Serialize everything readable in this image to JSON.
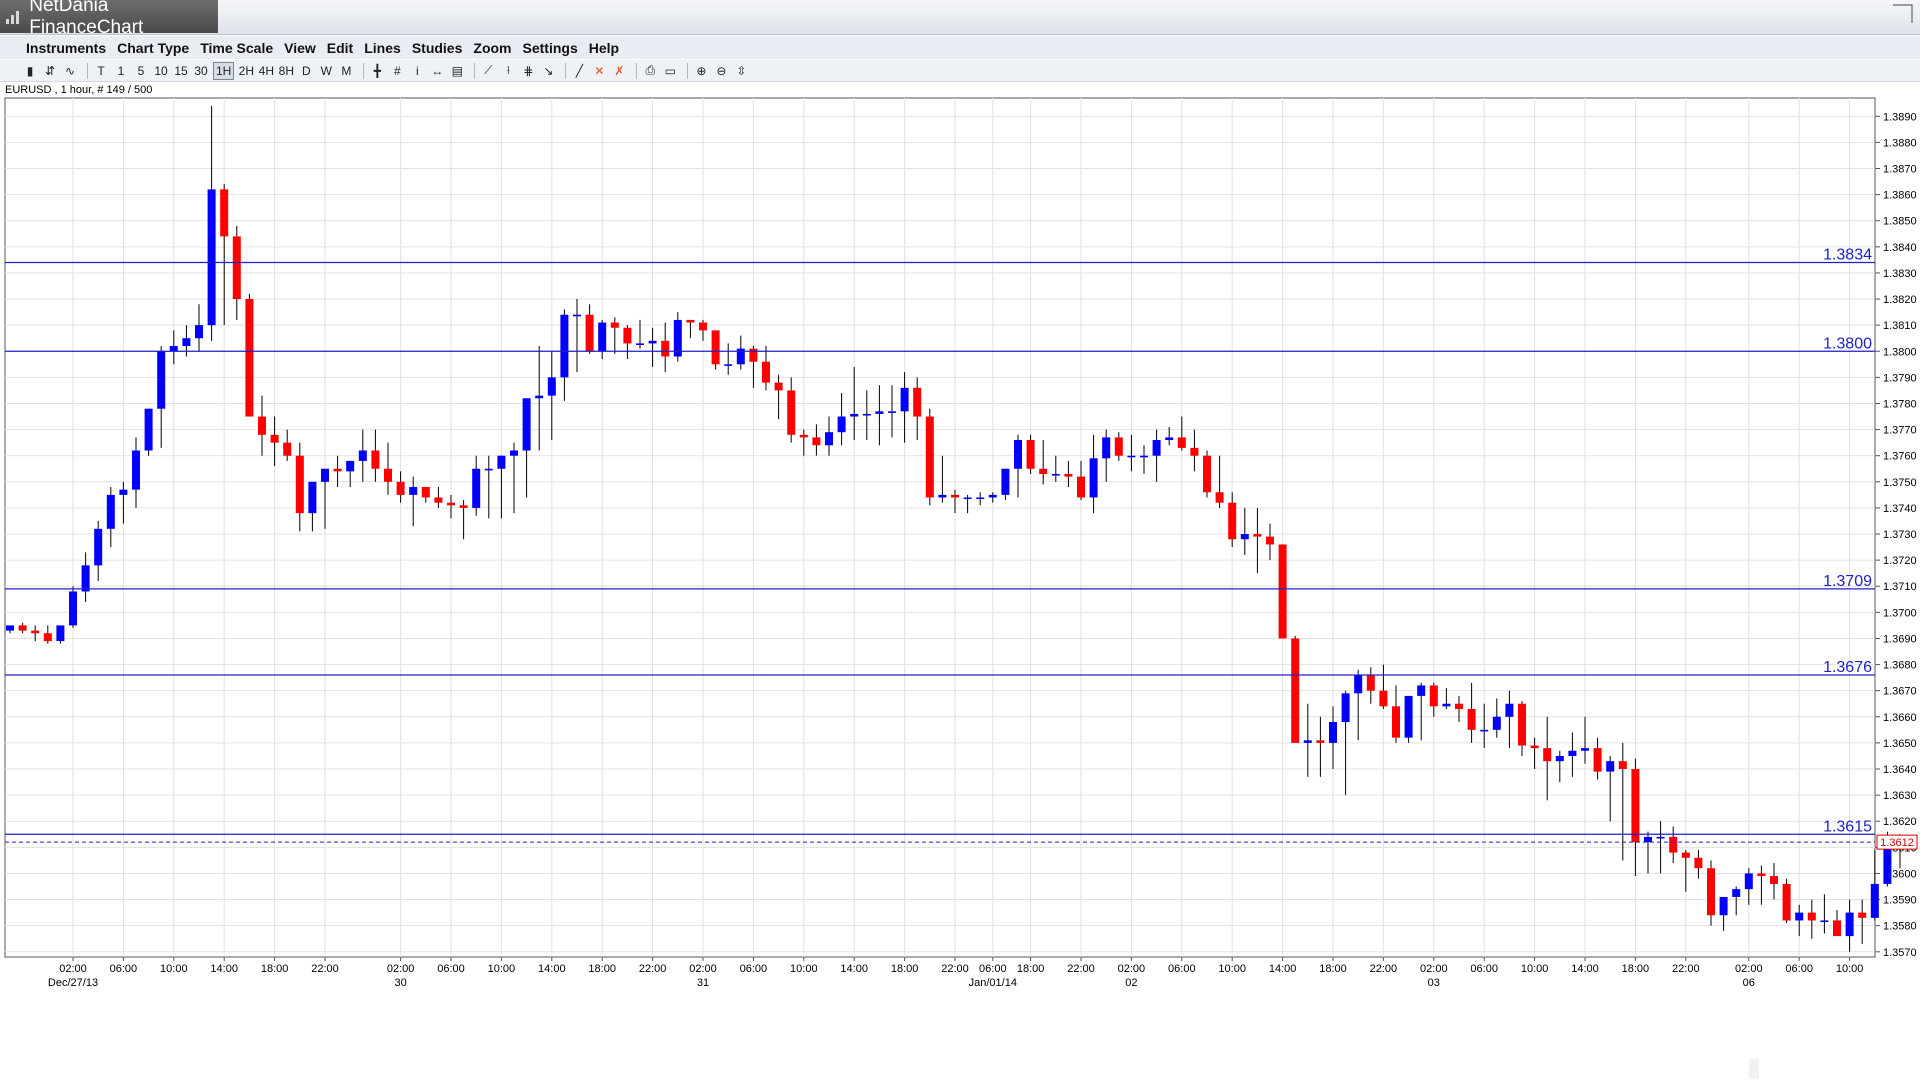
{
  "app": {
    "title": "NetDania FinanceChart"
  },
  "menu": [
    "Instruments",
    "Chart Type",
    "Time Scale",
    "View",
    "Edit",
    "Lines",
    "Studies",
    "Zoom",
    "Settings",
    "Help"
  ],
  "toolbar": {
    "group1": [
      "bar-chart-icon",
      "candlestick-icon",
      "line-chart-icon"
    ],
    "timescales": [
      "T",
      "1",
      "5",
      "10",
      "15",
      "30",
      "1H",
      "2H",
      "4H",
      "8H",
      "D",
      "W",
      "M"
    ],
    "active_timescale": "1H",
    "tools": [
      "crosshair-icon",
      "grid-icon",
      "info-icon",
      "pan-icon",
      "volume-icon",
      "trendline-icon",
      "fan-icon",
      "fibonacci-icon",
      "arrow-icon",
      "line-tool-icon",
      "delete-icon",
      "delete-all-icon",
      "print-icon",
      "print-preview-icon",
      "zoom-in-icon",
      "zoom-out-icon",
      "zoom-fit-icon"
    ]
  },
  "symbol_info": "EURUSD , 1 hour, # 149 / 500",
  "colors": {
    "up": "#0000ff",
    "down": "#ff0000",
    "hline": "#2020c8",
    "grid": "#e2e2e2",
    "last_price": "#d00000"
  },
  "chart_data": {
    "type": "candlestick",
    "symbol": "EURUSD",
    "interval": "1 hour",
    "ylim": [
      1.3568,
      1.3897
    ],
    "y_ticks": [
      1.357,
      1.358,
      1.359,
      1.36,
      1.361,
      1.362,
      1.363,
      1.364,
      1.365,
      1.366,
      1.367,
      1.368,
      1.369,
      1.37,
      1.371,
      1.372,
      1.373,
      1.374,
      1.375,
      1.376,
      1.377,
      1.378,
      1.379,
      1.38,
      1.381,
      1.382,
      1.383,
      1.384,
      1.385,
      1.386,
      1.387,
      1.388,
      1.389
    ],
    "x_ticks": [
      {
        "time": "02:00",
        "date": "Dec/27/13",
        "bar": 5
      },
      {
        "time": "06:00",
        "bar": 9
      },
      {
        "time": "10:00",
        "bar": 13
      },
      {
        "time": "14:00",
        "bar": 17
      },
      {
        "time": "18:00",
        "bar": 21
      },
      {
        "time": "22:00",
        "bar": 25
      },
      {
        "time": "02:00",
        "date": "30",
        "bar": 31
      },
      {
        "time": "06:00",
        "bar": 35
      },
      {
        "time": "10:00",
        "bar": 39
      },
      {
        "time": "14:00",
        "bar": 43
      },
      {
        "time": "18:00",
        "bar": 47
      },
      {
        "time": "22:00",
        "bar": 51
      },
      {
        "time": "02:00",
        "date": "31",
        "bar": 55
      },
      {
        "time": "06:00",
        "bar": 59
      },
      {
        "time": "10:00",
        "bar": 63
      },
      {
        "time": "14:00",
        "bar": 67
      },
      {
        "time": "18:00",
        "bar": 71
      },
      {
        "time": "22:00",
        "bar": 75
      },
      {
        "time": "06:00",
        "date": "Jan/01/14",
        "bar": 78
      },
      {
        "time": "18:00",
        "bar": 81
      },
      {
        "time": "22:00",
        "bar": 85
      },
      {
        "time": "02:00",
        "date": "02",
        "bar": 89
      },
      {
        "time": "06:00",
        "bar": 93
      },
      {
        "time": "10:00",
        "bar": 97
      },
      {
        "time": "14:00",
        "bar": 101
      },
      {
        "time": "18:00",
        "bar": 105
      },
      {
        "time": "22:00",
        "bar": 109
      },
      {
        "time": "02:00",
        "date": "03",
        "bar": 113
      },
      {
        "time": "06:00",
        "bar": 117
      },
      {
        "time": "10:00",
        "bar": 121
      },
      {
        "time": "14:00",
        "bar": 125
      },
      {
        "time": "18:00",
        "bar": 129
      },
      {
        "time": "22:00",
        "bar": 133
      },
      {
        "time": "02:00",
        "date": "06",
        "bar": 138
      },
      {
        "time": "06:00",
        "bar": 142
      },
      {
        "time": "10:00",
        "bar": 146
      }
    ],
    "levels": [
      {
        "value": 1.3834,
        "label": "1.3834"
      },
      {
        "value": 1.38,
        "label": "1.3800"
      },
      {
        "value": 1.3709,
        "label": "1.3709"
      },
      {
        "value": 1.3676,
        "label": "1.3676"
      },
      {
        "value": 1.3615,
        "label": "1.3615"
      }
    ],
    "last_price": {
      "value": 1.3612,
      "label": "1.3612"
    },
    "opens": [
      1.3693,
      1.3695,
      1.3693,
      1.3692,
      1.3689,
      1.3695,
      1.3708,
      1.3718,
      1.3732,
      1.3745,
      1.3747,
      1.3762,
      1.3778,
      1.38,
      1.3802,
      1.3805,
      1.381,
      1.3862,
      1.3844,
      1.382,
      1.3775,
      1.3768,
      1.3765,
      1.376,
      1.3738,
      1.375,
      1.3755,
      1.3754,
      1.3758,
      1.3762,
      1.3755,
      1.375,
      1.3745,
      1.3748,
      1.3744,
      1.3742,
      1.3741,
      1.374,
      1.3755,
      1.3755,
      1.376,
      1.3762,
      1.3782,
      1.3783,
      1.379,
      1.3814,
      1.3814,
      1.38,
      1.3811,
      1.3809,
      1.3803,
      1.3803,
      1.3804,
      1.3798,
      1.3812,
      1.3811,
      1.3808,
      1.3795,
      1.3795,
      1.3801,
      1.3796,
      1.3788,
      1.3785,
      1.3768,
      1.3767,
      1.3764,
      1.3769,
      1.3775,
      1.3776,
      1.3776,
      1.3777,
      1.3777,
      1.3786,
      1.3775,
      1.3744,
      1.3745,
      1.3744,
      1.3744,
      1.3744,
      1.3745,
      1.3755,
      1.3766,
      1.3755,
      1.3753,
      1.3753,
      1.3752,
      1.3744,
      1.3759,
      1.3767,
      1.376,
      1.376,
      1.376,
      1.3766,
      1.3767,
      1.3763,
      1.376,
      1.3746,
      1.3742,
      1.3728,
      1.373,
      1.3729,
      1.3726,
      1.369,
      1.365,
      1.3651,
      1.365,
      1.3658,
      1.3669,
      1.3676,
      1.367,
      1.3664,
      1.3652,
      1.3668,
      1.3672,
      1.3664,
      1.3665,
      1.3663,
      1.3655,
      1.3655,
      1.366,
      1.3665,
      1.3649,
      1.3648,
      1.3643,
      1.3645,
      1.3647,
      1.3648,
      1.3639,
      1.3643,
      1.364,
      1.3612,
      1.3614,
      1.3614,
      1.3608,
      1.3606,
      1.3602,
      1.3584,
      1.3591,
      1.3594,
      1.36,
      1.3599,
      1.3596,
      1.3582,
      1.3585,
      1.3582,
      1.3582,
      1.3576,
      1.3585,
      1.3583,
      1.3596,
      1.3612
    ],
    "highs": [
      1.3695,
      1.3696,
      1.3695,
      1.3695,
      1.3693,
      1.371,
      1.3723,
      1.3735,
      1.3748,
      1.375,
      1.3767,
      1.3775,
      1.3802,
      1.3808,
      1.381,
      1.3818,
      1.3894,
      1.3864,
      1.3848,
      1.3822,
      1.3783,
      1.3775,
      1.377,
      1.3765,
      1.3741,
      1.3754,
      1.376,
      1.3758,
      1.377,
      1.377,
      1.3765,
      1.3754,
      1.3752,
      1.3748,
      1.3748,
      1.3745,
      1.3743,
      1.376,
      1.376,
      1.376,
      1.3765,
      1.3777,
      1.3802,
      1.38,
      1.3816,
      1.382,
      1.3818,
      1.3812,
      1.3813,
      1.381,
      1.3812,
      1.3809,
      1.3811,
      1.3815,
      1.3812,
      1.3812,
      1.3808,
      1.3803,
      1.3806,
      1.3802,
      1.3802,
      1.3791,
      1.379,
      1.377,
      1.3772,
      1.3775,
      1.3784,
      1.3794,
      1.3785,
      1.3787,
      1.3787,
      1.3792,
      1.379,
      1.3778,
      1.376,
      1.3747,
      1.3745,
      1.3746,
      1.3746,
      1.3755,
      1.3768,
      1.3768,
      1.3766,
      1.376,
      1.3758,
      1.3758,
      1.3768,
      1.377,
      1.3769,
      1.3768,
      1.3764,
      1.377,
      1.3771,
      1.3775,
      1.377,
      1.3762,
      1.376,
      1.3746,
      1.374,
      1.374,
      1.3734,
      1.3726,
      1.3691,
      1.3665,
      1.366,
      1.3664,
      1.367,
      1.3678,
      1.3679,
      1.368,
      1.3672,
      1.3665,
      1.3673,
      1.3673,
      1.3671,
      1.3668,
      1.3673,
      1.3665,
      1.3667,
      1.367,
      1.3666,
      1.3652,
      1.366,
      1.3647,
      1.3654,
      1.366,
      1.3652,
      1.3645,
      1.365,
      1.3644,
      1.3616,
      1.362,
      1.3618,
      1.3609,
      1.3609,
      1.3605,
      1.359,
      1.3595,
      1.3602,
      1.3603,
      1.3604,
      1.3598,
      1.3588,
      1.359,
      1.3592,
      1.3586,
      1.359,
      1.359,
      1.3609,
      1.3616,
      1.3615
    ],
    "lows": [
      1.3692,
      1.3692,
      1.3689,
      1.3688,
      1.3688,
      1.3694,
      1.3704,
      1.3712,
      1.3725,
      1.3734,
      1.374,
      1.376,
      1.3763,
      1.3795,
      1.3798,
      1.38,
      1.3804,
      1.381,
      1.3812,
      1.379,
      1.376,
      1.3756,
      1.3758,
      1.3731,
      1.3731,
      1.3732,
      1.3748,
      1.3748,
      1.375,
      1.375,
      1.3745,
      1.3742,
      1.3733,
      1.3742,
      1.374,
      1.3736,
      1.3728,
      1.3737,
      1.3736,
      1.3736,
      1.3738,
      1.3744,
      1.3762,
      1.3766,
      1.3781,
      1.3792,
      1.3799,
      1.3797,
      1.3799,
      1.3797,
      1.3801,
      1.3794,
      1.3792,
      1.3796,
      1.3805,
      1.3804,
      1.3793,
      1.3791,
      1.3793,
      1.3786,
      1.3785,
      1.3774,
      1.3765,
      1.376,
      1.376,
      1.376,
      1.3764,
      1.3766,
      1.3766,
      1.3764,
      1.3767,
      1.3765,
      1.3766,
      1.3741,
      1.3742,
      1.3738,
      1.3738,
      1.3741,
      1.3742,
      1.3743,
      1.3744,
      1.3753,
      1.3749,
      1.375,
      1.3748,
      1.3743,
      1.3738,
      1.375,
      1.3758,
      1.3754,
      1.3753,
      1.375,
      1.3764,
      1.3762,
      1.3754,
      1.3744,
      1.374,
      1.3725,
      1.3722,
      1.3715,
      1.372,
      1.3718,
      1.3685,
      1.3637,
      1.3637,
      1.364,
      1.363,
      1.3651,
      1.3665,
      1.3663,
      1.365,
      1.365,
      1.3651,
      1.366,
      1.3663,
      1.3658,
      1.365,
      1.3648,
      1.3652,
      1.3648,
      1.3645,
      1.364,
      1.3628,
      1.3635,
      1.3637,
      1.3642,
      1.3636,
      1.362,
      1.3605,
      1.3599,
      1.36,
      1.36,
      1.3604,
      1.3593,
      1.3598,
      1.358,
      1.3578,
      1.3584,
      1.3588,
      1.3588,
      1.359,
      1.3581,
      1.3576,
      1.3575,
      1.3577,
      1.3578,
      1.357,
      1.3573,
      1.3582,
      1.3595,
      1.3602
    ],
    "closes": [
      1.3695,
      1.3693,
      1.3692,
      1.3689,
      1.3695,
      1.3708,
      1.3718,
      1.3732,
      1.3745,
      1.3747,
      1.3762,
      1.3778,
      1.38,
      1.3802,
      1.3805,
      1.381,
      1.3862,
      1.3844,
      1.382,
      1.3775,
      1.3768,
      1.3765,
      1.376,
      1.3738,
      1.375,
      1.3755,
      1.3754,
      1.3758,
      1.3762,
      1.3755,
      1.375,
      1.3745,
      1.3748,
      1.3744,
      1.3742,
      1.3741,
      1.374,
      1.3755,
      1.3755,
      1.376,
      1.3762,
      1.3782,
      1.3783,
      1.379,
      1.3814,
      1.3814,
      1.38,
      1.3811,
      1.3809,
      1.3803,
      1.3803,
      1.3804,
      1.3798,
      1.3812,
      1.3811,
      1.3808,
      1.3795,
      1.3795,
      1.3801,
      1.3796,
      1.3788,
      1.3785,
      1.3768,
      1.3767,
      1.3764,
      1.3769,
      1.3775,
      1.3776,
      1.3776,
      1.3777,
      1.3777,
      1.3786,
      1.3775,
      1.3744,
      1.3745,
      1.3744,
      1.3744,
      1.3744,
      1.3745,
      1.3755,
      1.3766,
      1.3755,
      1.3753,
      1.3753,
      1.3752,
      1.3744,
      1.3759,
      1.3767,
      1.376,
      1.376,
      1.376,
      1.3766,
      1.3767,
      1.3763,
      1.376,
      1.3746,
      1.3742,
      1.3728,
      1.373,
      1.3729,
      1.3726,
      1.369,
      1.365,
      1.3651,
      1.365,
      1.3658,
      1.3669,
      1.3676,
      1.367,
      1.3664,
      1.3652,
      1.3668,
      1.3672,
      1.3664,
      1.3665,
      1.3663,
      1.3655,
      1.3655,
      1.366,
      1.3665,
      1.3649,
      1.3648,
      1.3643,
      1.3645,
      1.3647,
      1.3648,
      1.3639,
      1.3643,
      1.364,
      1.3612,
      1.3614,
      1.3614,
      1.3608,
      1.3606,
      1.3602,
      1.3584,
      1.3591,
      1.3594,
      1.36,
      1.3599,
      1.3596,
      1.3582,
      1.3585,
      1.3582,
      1.3582,
      1.3576,
      1.3585,
      1.3583,
      1.3596,
      1.3612,
      1.3612
    ]
  }
}
